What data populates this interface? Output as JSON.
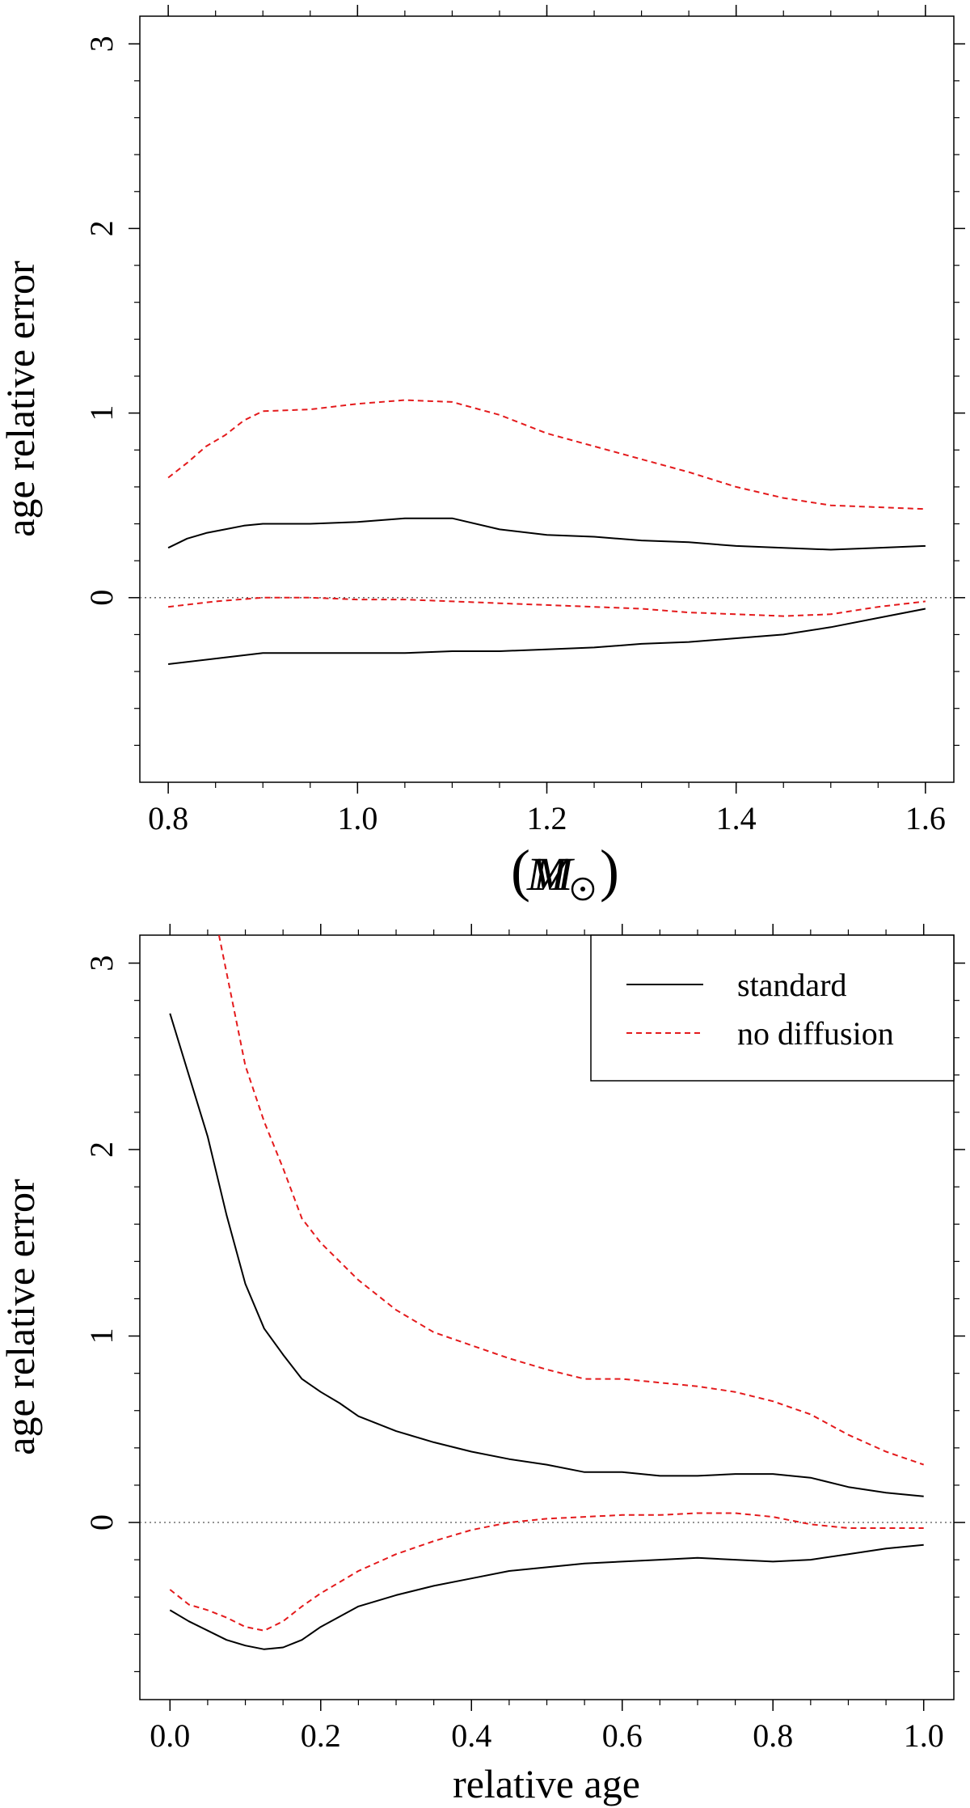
{
  "chart_data": [
    {
      "type": "line",
      "xlabel_symbol": "M",
      "xlabel_unit_symbol": "M",
      "ylabel": "age relative error",
      "xlim": [
        0.77,
        1.63
      ],
      "ylim": [
        -1.0,
        3.15
      ],
      "x_ticks": [
        0.8,
        1.0,
        1.2,
        1.4,
        1.6
      ],
      "x_tick_labels": [
        "0.8",
        "1.0",
        "1.2",
        "1.4",
        "1.6"
      ],
      "y_ticks": [
        0,
        1,
        2,
        3
      ],
      "y_tick_labels": [
        "0",
        "1",
        "2",
        "3"
      ],
      "reference_line_y": 0,
      "series": [
        {
          "name": "standard",
          "color": "#000000",
          "style": "solid",
          "upper": {
            "x": [
              0.8,
              0.82,
              0.84,
              0.86,
              0.88,
              0.9,
              0.95,
              1.0,
              1.05,
              1.1,
              1.15,
              1.2,
              1.25,
              1.3,
              1.35,
              1.4,
              1.45,
              1.5,
              1.55,
              1.6
            ],
            "y": [
              0.27,
              0.32,
              0.35,
              0.37,
              0.39,
              0.4,
              0.4,
              0.41,
              0.43,
              0.43,
              0.37,
              0.34,
              0.33,
              0.31,
              0.3,
              0.28,
              0.27,
              0.26,
              0.27,
              0.28
            ]
          },
          "lower": {
            "x": [
              0.8,
              0.85,
              0.9,
              0.95,
              1.0,
              1.05,
              1.1,
              1.15,
              1.2,
              1.25,
              1.3,
              1.35,
              1.4,
              1.45,
              1.5,
              1.55,
              1.6
            ],
            "y": [
              -0.36,
              -0.33,
              -0.3,
              -0.3,
              -0.3,
              -0.3,
              -0.29,
              -0.29,
              -0.28,
              -0.27,
              -0.25,
              -0.24,
              -0.22,
              -0.2,
              -0.16,
              -0.11,
              -0.06
            ]
          }
        },
        {
          "name": "no diffusion",
          "color": "#e41a1c",
          "style": "dashed",
          "upper": {
            "x": [
              0.8,
              0.82,
              0.84,
              0.86,
              0.88,
              0.9,
              0.95,
              1.0,
              1.05,
              1.1,
              1.15,
              1.2,
              1.25,
              1.3,
              1.35,
              1.4,
              1.45,
              1.5,
              1.55,
              1.6
            ],
            "y": [
              0.65,
              0.73,
              0.82,
              0.88,
              0.96,
              1.01,
              1.02,
              1.05,
              1.07,
              1.06,
              0.99,
              0.89,
              0.82,
              0.75,
              0.68,
              0.6,
              0.54,
              0.5,
              0.49,
              0.48
            ]
          },
          "lower": {
            "x": [
              0.8,
              0.85,
              0.9,
              0.95,
              1.0,
              1.05,
              1.1,
              1.15,
              1.2,
              1.25,
              1.3,
              1.35,
              1.4,
              1.45,
              1.5,
              1.55,
              1.6
            ],
            "y": [
              -0.05,
              -0.02,
              0.0,
              0.0,
              -0.01,
              -0.01,
              -0.02,
              -0.03,
              -0.04,
              -0.05,
              -0.06,
              -0.08,
              -0.09,
              -0.1,
              -0.09,
              -0.05,
              -0.02
            ]
          }
        }
      ]
    },
    {
      "type": "line",
      "xlabel": "relative age",
      "ylabel": "age relative error",
      "xlim": [
        -0.04,
        1.04
      ],
      "ylim": [
        -0.95,
        3.15
      ],
      "x_ticks": [
        0.0,
        0.2,
        0.4,
        0.6,
        0.8,
        1.0
      ],
      "x_tick_labels": [
        "0.0",
        "0.2",
        "0.4",
        "0.6",
        "0.8",
        "1.0"
      ],
      "y_ticks": [
        0,
        1,
        2,
        3
      ],
      "y_tick_labels": [
        "0",
        "1",
        "2",
        "3"
      ],
      "reference_line_y": 0,
      "legend": {
        "position": "top-right",
        "entries": [
          {
            "label": "standard",
            "color": "#000000",
            "style": "solid"
          },
          {
            "label": "no diffusion",
            "color": "#e41a1c",
            "style": "dashed"
          }
        ]
      },
      "series": [
        {
          "name": "standard",
          "color": "#000000",
          "style": "solid",
          "upper": {
            "x": [
              0.0,
              0.025,
              0.05,
              0.075,
              0.1,
              0.125,
              0.15,
              0.175,
              0.2,
              0.225,
              0.25,
              0.3,
              0.35,
              0.4,
              0.45,
              0.5,
              0.55,
              0.6,
              0.65,
              0.7,
              0.75,
              0.8,
              0.85,
              0.9,
              0.95,
              1.0
            ],
            "y": [
              2.73,
              2.4,
              2.07,
              1.65,
              1.28,
              1.04,
              0.9,
              0.77,
              0.7,
              0.64,
              0.57,
              0.49,
              0.43,
              0.38,
              0.34,
              0.31,
              0.27,
              0.27,
              0.25,
              0.25,
              0.26,
              0.26,
              0.24,
              0.19,
              0.16,
              0.14
            ]
          },
          "lower": {
            "x": [
              0.0,
              0.025,
              0.05,
              0.075,
              0.1,
              0.125,
              0.15,
              0.175,
              0.2,
              0.25,
              0.3,
              0.35,
              0.4,
              0.45,
              0.5,
              0.55,
              0.6,
              0.65,
              0.7,
              0.75,
              0.8,
              0.85,
              0.9,
              0.95,
              1.0
            ],
            "y": [
              -0.47,
              -0.53,
              -0.58,
              -0.63,
              -0.66,
              -0.68,
              -0.67,
              -0.63,
              -0.56,
              -0.45,
              -0.39,
              -0.34,
              -0.3,
              -0.26,
              -0.24,
              -0.22,
              -0.21,
              -0.2,
              -0.19,
              -0.2,
              -0.21,
              -0.2,
              -0.17,
              -0.14,
              -0.12
            ]
          }
        },
        {
          "name": "no diffusion",
          "color": "#e41a1c",
          "style": "dashed",
          "upper": {
            "x": [
              0.065,
              0.08,
              0.1,
              0.125,
              0.15,
              0.175,
              0.2,
              0.25,
              0.3,
              0.35,
              0.4,
              0.45,
              0.5,
              0.55,
              0.6,
              0.65,
              0.7,
              0.75,
              0.8,
              0.85,
              0.9,
              0.95,
              1.0
            ],
            "y": [
              3.15,
              2.85,
              2.45,
              2.15,
              1.9,
              1.63,
              1.5,
              1.3,
              1.14,
              1.02,
              0.95,
              0.88,
              0.82,
              0.77,
              0.77,
              0.75,
              0.73,
              0.7,
              0.65,
              0.58,
              0.47,
              0.38,
              0.31
            ]
          },
          "lower": {
            "x": [
              0.0,
              0.025,
              0.05,
              0.075,
              0.1,
              0.125,
              0.15,
              0.175,
              0.2,
              0.25,
              0.3,
              0.35,
              0.4,
              0.45,
              0.5,
              0.55,
              0.6,
              0.65,
              0.7,
              0.75,
              0.8,
              0.85,
              0.9,
              0.95,
              1.0
            ],
            "y": [
              -0.36,
              -0.44,
              -0.47,
              -0.51,
              -0.56,
              -0.58,
              -0.53,
              -0.45,
              -0.38,
              -0.26,
              -0.17,
              -0.1,
              -0.04,
              0.0,
              0.02,
              0.03,
              0.04,
              0.04,
              0.05,
              0.05,
              0.03,
              -0.01,
              -0.03,
              -0.03,
              -0.03
            ]
          }
        }
      ]
    }
  ]
}
